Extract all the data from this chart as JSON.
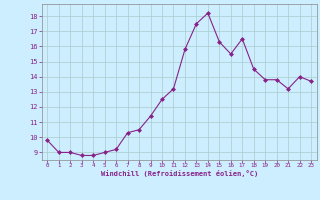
{
  "x": [
    0,
    1,
    2,
    3,
    4,
    5,
    6,
    7,
    8,
    9,
    10,
    11,
    12,
    13,
    14,
    15,
    16,
    17,
    18,
    19,
    20,
    21,
    22,
    23
  ],
  "y": [
    9.8,
    9.0,
    9.0,
    8.8,
    8.8,
    9.0,
    9.2,
    10.3,
    10.5,
    11.4,
    12.5,
    13.2,
    15.8,
    17.5,
    18.2,
    16.3,
    15.5,
    16.5,
    14.5,
    13.8,
    13.8,
    13.2,
    14.0,
    13.7
  ],
  "xlim": [
    -0.5,
    23.5
  ],
  "ylim": [
    8.5,
    18.8
  ],
  "yticks": [
    9,
    10,
    11,
    12,
    13,
    14,
    15,
    16,
    17,
    18
  ],
  "xticks": [
    0,
    1,
    2,
    3,
    4,
    5,
    6,
    7,
    8,
    9,
    10,
    11,
    12,
    13,
    14,
    15,
    16,
    17,
    18,
    19,
    20,
    21,
    22,
    23
  ],
  "xlabel": "Windchill (Refroidissement éolien,°C)",
  "line_color": "#882288",
  "marker_color": "#882288",
  "bg_color": "#cceeff",
  "grid_color": "#aacccc",
  "text_color": "#882288",
  "spine_color": "#888888"
}
